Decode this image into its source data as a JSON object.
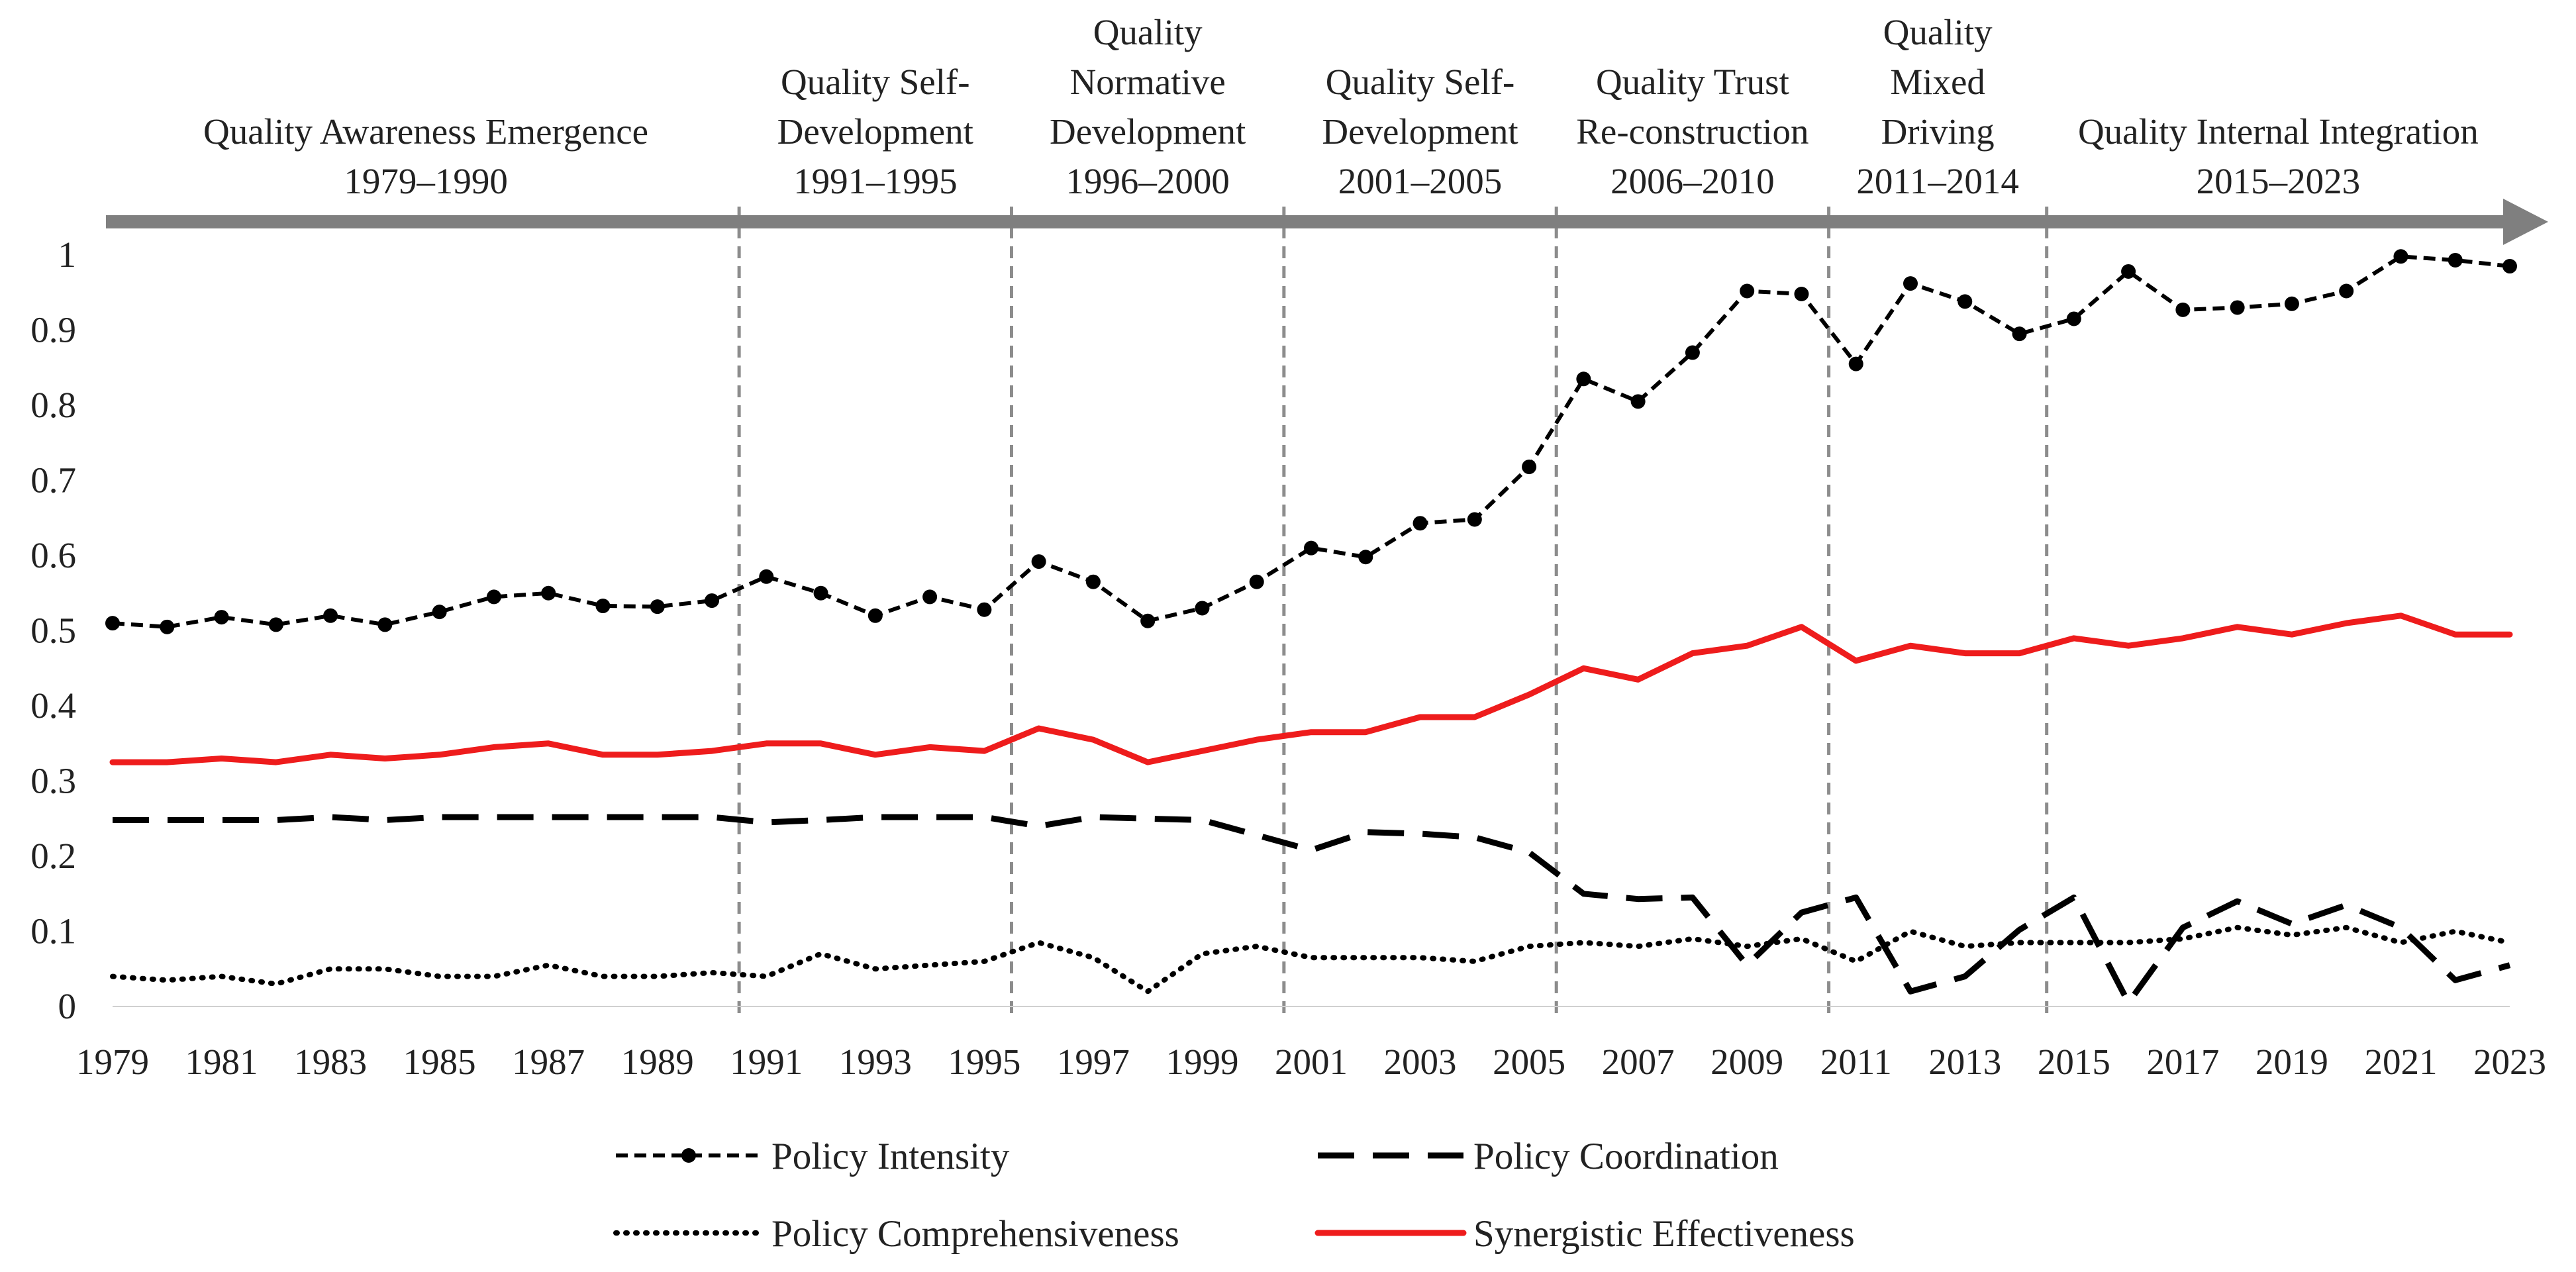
{
  "chart_data": {
    "type": "line",
    "title": "",
    "xlabel": "",
    "ylabel": "",
    "x": [
      1979,
      1980,
      1981,
      1982,
      1983,
      1984,
      1985,
      1986,
      1987,
      1988,
      1989,
      1990,
      1991,
      1992,
      1993,
      1994,
      1995,
      1996,
      1997,
      1998,
      1999,
      2000,
      2001,
      2002,
      2003,
      2004,
      2005,
      2006,
      2007,
      2008,
      2009,
      2010,
      2011,
      2012,
      2013,
      2014,
      2015,
      2016,
      2017,
      2018,
      2019,
      2020,
      2021,
      2022,
      2023
    ],
    "x_tick_labels": [
      "1979",
      "1981",
      "1983",
      "1985",
      "1987",
      "1989",
      "1991",
      "1993",
      "1995",
      "1997",
      "1999",
      "2001",
      "2003",
      "2005",
      "2007",
      "2009",
      "2011",
      "2013",
      "2015",
      "2017",
      "2019",
      "2021",
      "2023"
    ],
    "ylim": [
      0,
      1
    ],
    "y_tick_labels": [
      "0",
      "0.1",
      "0.2",
      "0.3",
      "0.4",
      "0.5",
      "0.6",
      "0.7",
      "0.8",
      "0.9",
      "1"
    ],
    "grid": false,
    "legend_position": "bottom",
    "series": [
      {
        "name": "Policy Intensity",
        "color": "#000000",
        "style": "dashed-with-markers",
        "values": [
          0.51,
          0.505,
          0.518,
          0.508,
          0.52,
          0.508,
          0.525,
          0.545,
          0.55,
          0.533,
          0.532,
          0.54,
          0.572,
          0.55,
          0.52,
          0.545,
          0.528,
          0.592,
          0.565,
          0.513,
          0.53,
          0.565,
          0.61,
          0.598,
          0.643,
          0.648,
          0.718,
          0.835,
          0.805,
          0.87,
          0.952,
          0.948,
          0.855,
          0.962,
          0.938,
          0.895,
          0.915,
          0.978,
          0.927,
          0.93,
          0.935,
          0.952,
          0.998,
          0.993,
          0.985
        ]
      },
      {
        "name": "Policy Coordination",
        "color": "#000000",
        "style": "long-dash",
        "values": [
          0.248,
          0.248,
          0.248,
          0.248,
          0.252,
          0.248,
          0.252,
          0.252,
          0.252,
          0.252,
          0.252,
          0.252,
          0.245,
          0.248,
          0.252,
          0.252,
          0.252,
          0.24,
          0.252,
          0.25,
          0.248,
          0.228,
          0.208,
          0.232,
          0.23,
          0.225,
          0.205,
          0.15,
          0.143,
          0.145,
          0.055,
          0.125,
          0.145,
          0.02,
          0.04,
          0.102,
          0.145,
          0.005,
          0.105,
          0.14,
          0.11,
          0.135,
          0.105,
          0.035,
          0.055
        ]
      },
      {
        "name": "Policy Comprehensiveness",
        "color": "#000000",
        "style": "dotted",
        "values": [
          0.04,
          0.035,
          0.04,
          0.03,
          0.05,
          0.05,
          0.04,
          0.04,
          0.055,
          0.04,
          0.04,
          0.045,
          0.04,
          0.07,
          0.05,
          0.055,
          0.06,
          0.085,
          0.065,
          0.02,
          0.07,
          0.08,
          0.065,
          0.065,
          0.065,
          0.06,
          0.08,
          0.085,
          0.08,
          0.09,
          0.08,
          0.09,
          0.06,
          0.1,
          0.08,
          0.085,
          0.085,
          0.085,
          0.09,
          0.105,
          0.095,
          0.105,
          0.085,
          0.1,
          0.085
        ]
      },
      {
        "name": "Synergistic Effectiveness",
        "color": "#ee1c1c",
        "style": "solid",
        "values": [
          0.325,
          0.325,
          0.33,
          0.325,
          0.335,
          0.33,
          0.335,
          0.345,
          0.35,
          0.335,
          0.335,
          0.34,
          0.35,
          0.35,
          0.335,
          0.345,
          0.34,
          0.37,
          0.355,
          0.325,
          0.34,
          0.355,
          0.365,
          0.365,
          0.385,
          0.385,
          0.415,
          0.45,
          0.435,
          0.47,
          0.48,
          0.505,
          0.46,
          0.48,
          0.47,
          0.47,
          0.49,
          0.48,
          0.49,
          0.505,
          0.495,
          0.51,
          0.52,
          0.495,
          0.495
        ]
      }
    ],
    "stages": [
      {
        "lines": [
          "Quality Awareness Emergence",
          "1979–1990"
        ],
        "start": 1979,
        "end": 1990.5
      },
      {
        "lines": [
          "Quality Self-",
          "Development",
          "1991–1995"
        ],
        "start": 1990.5,
        "end": 1995.5
      },
      {
        "lines": [
          "Quality",
          "Normative",
          "Development",
          "1996–2000"
        ],
        "start": 1995.5,
        "end": 2000.5
      },
      {
        "lines": [
          "Quality Self-",
          "Development",
          "2001–2005"
        ],
        "start": 2000.5,
        "end": 2005.5
      },
      {
        "lines": [
          "Quality Trust",
          "Re-construction",
          "2006–2010"
        ],
        "start": 2005.5,
        "end": 2010.5
      },
      {
        "lines": [
          "Quality",
          "Mixed",
          "Driving",
          "2011–2014"
        ],
        "start": 2010.5,
        "end": 2014.5
      },
      {
        "lines": [
          "Quality Internal Integration",
          "2015–2023"
        ],
        "start": 2014.5,
        "end": 2023
      }
    ],
    "stage_boundaries": [
      1990.5,
      1995.5,
      2000.5,
      2005.5,
      2010.5,
      2014.5
    ]
  }
}
